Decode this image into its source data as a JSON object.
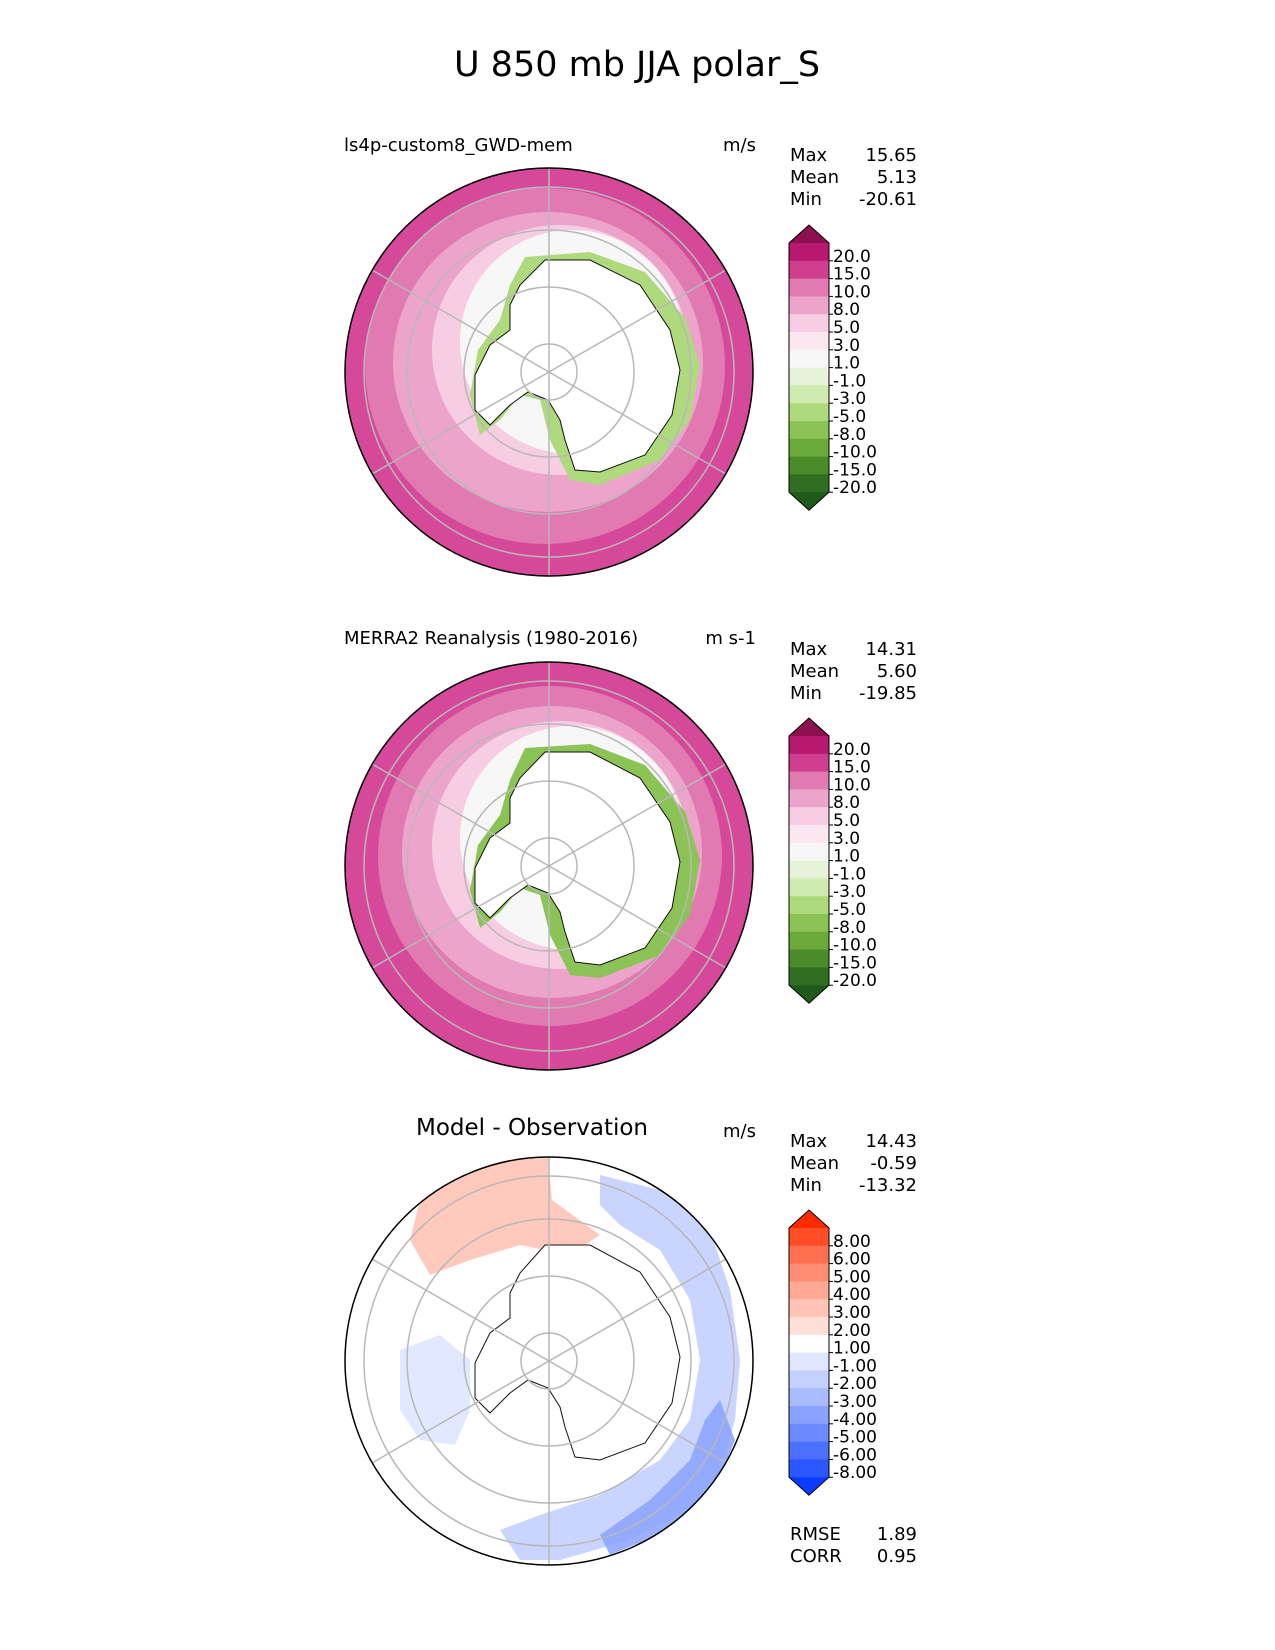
{
  "figure_title": "U 850 mb JJA polar_S",
  "chart_data": [
    {
      "type": "heatmap",
      "projection": "south polar stereographic",
      "title": "ls4p-custom8_GWD-mem",
      "units": "m/s",
      "stats": [
        {
          "label": "Max",
          "value": "15.65"
        },
        {
          "label": "Mean",
          "value": "5.13"
        },
        {
          "label": "Min",
          "value": "-20.61"
        }
      ],
      "colorbar": {
        "ticks": [
          "20.0",
          "15.0",
          "10.0",
          "8.0",
          "5.0",
          "3.0",
          "1.0",
          "-1.0",
          "-3.0",
          "-5.0",
          "-8.0",
          "-10.0",
          "-15.0",
          "-20.0"
        ],
        "colors": [
          "#8c0f4f",
          "#b8186f",
          "#d03f8f",
          "#e07ab0",
          "#eca4cb",
          "#f6cde3",
          "#fae7f0",
          "#f7f7f7",
          "#e6f3d8",
          "#d0ebb0",
          "#afd97d",
          "#8cc356",
          "#6aa93a",
          "#4a8c2a",
          "#306f21",
          "#1e5a1a"
        ],
        "extend": "both"
      },
      "grid": true
    },
    {
      "type": "heatmap",
      "projection": "south polar stereographic",
      "title": "MERRA2 Reanalysis (1980-2016)",
      "units": "m s-1",
      "stats": [
        {
          "label": "Max",
          "value": "14.31"
        },
        {
          "label": "Mean",
          "value": "5.60"
        },
        {
          "label": "Min",
          "value": "-19.85"
        }
      ],
      "colorbar": {
        "ticks": [
          "20.0",
          "15.0",
          "10.0",
          "8.0",
          "5.0",
          "3.0",
          "1.0",
          "-1.0",
          "-3.0",
          "-5.0",
          "-8.0",
          "-10.0",
          "-15.0",
          "-20.0"
        ],
        "colors": [
          "#8c0f4f",
          "#b8186f",
          "#d03f8f",
          "#e07ab0",
          "#eca4cb",
          "#f6cde3",
          "#fae7f0",
          "#f7f7f7",
          "#e6f3d8",
          "#d0ebb0",
          "#afd97d",
          "#8cc356",
          "#6aa93a",
          "#4a8c2a",
          "#306f21",
          "#1e5a1a"
        ],
        "extend": "both"
      },
      "grid": true
    },
    {
      "type": "heatmap",
      "projection": "south polar stereographic",
      "title": "Model - Observation",
      "units": "m/s",
      "stats": [
        {
          "label": "Max",
          "value": "14.43"
        },
        {
          "label": "Mean",
          "value": "-0.59"
        },
        {
          "label": "Min",
          "value": "-13.32"
        }
      ],
      "metrics": [
        {
          "label": "RMSE",
          "value": "1.89"
        },
        {
          "label": "CORR",
          "value": "0.95"
        }
      ],
      "colorbar": {
        "ticks": [
          "8.00",
          "6.00",
          "5.00",
          "4.00",
          "3.00",
          "2.00",
          "1.00",
          "-1.00",
          "-2.00",
          "-3.00",
          "-4.00",
          "-5.00",
          "-6.00",
          "-8.00"
        ],
        "colors": [
          "#ff2a00",
          "#ff4d26",
          "#ff6f50",
          "#ff8d72",
          "#ffa994",
          "#ffc4b6",
          "#ffe0d8",
          "#ffffff",
          "#dfe6ff",
          "#c4d0ff",
          "#a9baff",
          "#8aa2ff",
          "#6b8aff",
          "#4b70ff",
          "#2c56ff",
          "#0a3cff"
        ],
        "extend": "both"
      },
      "grid": true
    }
  ]
}
